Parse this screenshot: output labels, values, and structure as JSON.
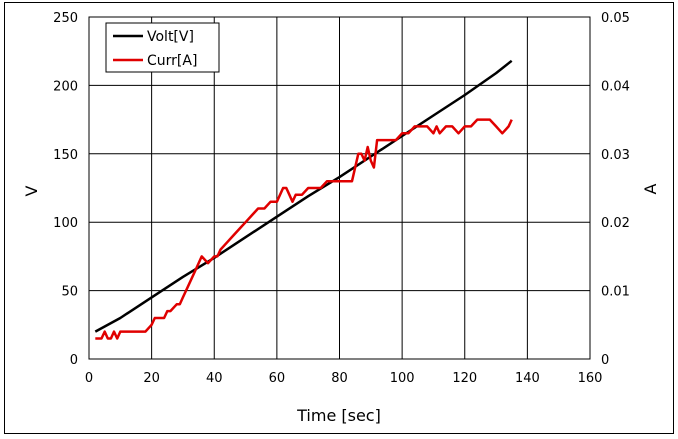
{
  "chart_data": {
    "type": "line",
    "title": "",
    "xlabel": "Time [sec]",
    "ylabel_left": "V",
    "ylabel_right": "A",
    "xlim": [
      0,
      160
    ],
    "ylim_left": [
      0,
      250
    ],
    "ylim_right": [
      0,
      0.05
    ],
    "x_ticks": [
      0,
      20,
      40,
      60,
      80,
      100,
      120,
      140,
      160
    ],
    "y_left_ticks": [
      0,
      50,
      100,
      150,
      200,
      250
    ],
    "y_right_ticks": [
      "0",
      "0.01",
      "0.02",
      "0.03",
      "0.04",
      "0.05"
    ],
    "y_right_values": [
      0,
      0.01,
      0.02,
      0.03,
      0.04,
      0.05
    ],
    "grid": true,
    "legend": "top-left",
    "series": [
      {
        "name": "Volt[V]",
        "axis": "left",
        "color": "#000000",
        "x": [
          2,
          10,
          20,
          30,
          40,
          50,
          60,
          70,
          80,
          90,
          100,
          110,
          120,
          130,
          135
        ],
        "y": [
          20,
          30,
          45,
          60,
          74,
          89,
          104,
          119,
          133,
          148,
          163,
          178,
          193,
          209,
          218
        ]
      },
      {
        "name": "Curr[A]",
        "axis": "right",
        "color": "#e00000",
        "x": [
          2,
          4,
          5,
          6,
          7,
          8,
          9,
          10,
          12,
          14,
          16,
          18,
          20,
          21,
          22,
          24,
          25,
          26,
          28,
          29,
          30,
          32,
          34,
          36,
          38,
          40,
          41,
          42,
          44,
          46,
          48,
          50,
          52,
          54,
          56,
          58,
          60,
          62,
          63,
          64,
          65,
          66,
          68,
          70,
          72,
          74,
          76,
          78,
          80,
          82,
          84,
          86,
          87,
          88,
          89,
          90,
          91,
          92,
          93,
          94,
          96,
          98,
          100,
          102,
          104,
          106,
          108,
          110,
          111,
          112,
          114,
          116,
          118,
          120,
          122,
          124,
          126,
          128,
          130,
          132,
          134,
          135
        ],
        "y": [
          0.003,
          0.003,
          0.004,
          0.003,
          0.003,
          0.004,
          0.003,
          0.004,
          0.004,
          0.004,
          0.004,
          0.004,
          0.005,
          0.006,
          0.006,
          0.006,
          0.007,
          0.007,
          0.008,
          0.008,
          0.009,
          0.011,
          0.013,
          0.015,
          0.014,
          0.015,
          0.015,
          0.016,
          0.017,
          0.018,
          0.019,
          0.02,
          0.021,
          0.022,
          0.022,
          0.023,
          0.023,
          0.025,
          0.025,
          0.024,
          0.023,
          0.024,
          0.024,
          0.025,
          0.025,
          0.025,
          0.026,
          0.026,
          0.026,
          0.026,
          0.026,
          0.03,
          0.03,
          0.029,
          0.031,
          0.029,
          0.028,
          0.032,
          0.032,
          0.032,
          0.032,
          0.032,
          0.033,
          0.033,
          0.034,
          0.034,
          0.034,
          0.033,
          0.034,
          0.033,
          0.034,
          0.034,
          0.033,
          0.034,
          0.034,
          0.035,
          0.035,
          0.035,
          0.034,
          0.033,
          0.034,
          0.035
        ]
      }
    ]
  }
}
